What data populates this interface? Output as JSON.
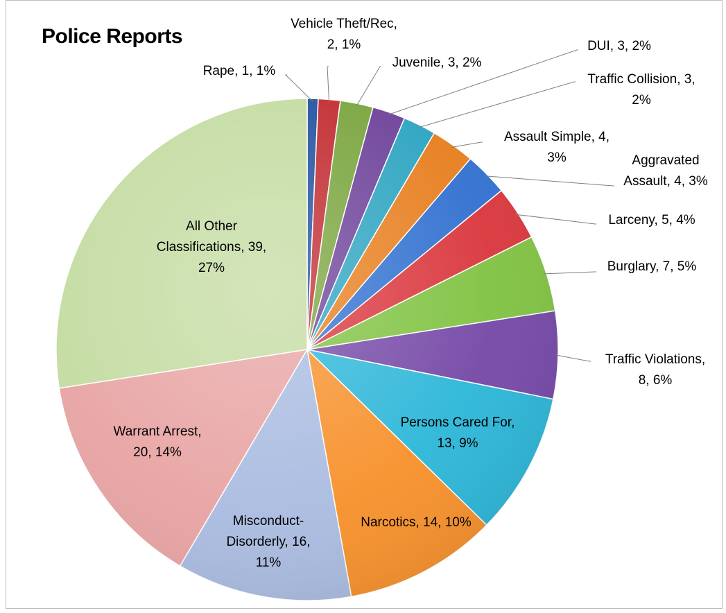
{
  "chart_data": {
    "type": "pie",
    "title": "Police Reports",
    "slices": [
      {
        "label": "Rape",
        "value": 1,
        "percent": "1%",
        "color": "#1f4e9e",
        "text": [
          "Rape, 1, 1%"
        ]
      },
      {
        "label": "Vehicle Theft/Rec",
        "value": 2,
        "percent": "1%",
        "color": "#c0272d",
        "text": [
          "Vehicle Theft/Rec,",
          "2, 1%"
        ]
      },
      {
        "label": "Juvenile",
        "value": 3,
        "percent": "2%",
        "color": "#77a33a",
        "text": [
          "Juvenile, 3, 2%"
        ]
      },
      {
        "label": "DUI",
        "value": 3,
        "percent": "2%",
        "color": "#6b3f98",
        "text": [
          "DUI, 3, 2%"
        ]
      },
      {
        "label": "Traffic Collision",
        "value": 3,
        "percent": "2%",
        "color": "#2aa3c0",
        "text": [
          "Traffic Collision, 3,",
          "2%"
        ]
      },
      {
        "label": "Assault Simple",
        "value": 4,
        "percent": "3%",
        "color": "#e77d1c",
        "text": [
          "Assault Simple, 4,",
          "3%"
        ]
      },
      {
        "label": "Aggravated Assault",
        "value": 4,
        "percent": "3%",
        "color": "#2f6fd0",
        "text": [
          "Aggravated",
          "Assault, 4, 3%"
        ]
      },
      {
        "label": "Larceny",
        "value": 5,
        "percent": "4%",
        "color": "#d9353b",
        "text": [
          "Larceny, 5, 4%"
        ]
      },
      {
        "label": "Burglary",
        "value": 7,
        "percent": "5%",
        "color": "#7fc241",
        "text": [
          "Burglary, 7, 5%"
        ]
      },
      {
        "label": "Traffic Violations",
        "value": 8,
        "percent": "6%",
        "color": "#7447a6",
        "text": [
          "Traffic Violations,",
          "8, 6%"
        ]
      },
      {
        "label": "Persons Cared For",
        "value": 13,
        "percent": "9%",
        "color": "#2bb6d8",
        "text": [
          "Persons Cared For,",
          "13, 9%"
        ]
      },
      {
        "label": "Narcotics",
        "value": 14,
        "percent": "10%",
        "color": "#f7902a",
        "text": [
          "Narcotics, 14, 10%"
        ]
      },
      {
        "label": "Misconduct-Disorderly",
        "value": 16,
        "percent": "11%",
        "color": "#a9bbe0",
        "text": [
          "Misconduct-",
          "Disorderly, 16,",
          "11%"
        ]
      },
      {
        "label": "Warrant Arrest",
        "value": 20,
        "percent": "14%",
        "color": "#e8a3a3",
        "text": [
          "Warrant Arrest,",
          "20, 14%"
        ]
      },
      {
        "label": "All Other Classifications",
        "value": 39,
        "percent": "27%",
        "color": "#c3dba0",
        "text": [
          "All Other",
          "Classifications, 39,",
          "27%"
        ]
      }
    ]
  }
}
